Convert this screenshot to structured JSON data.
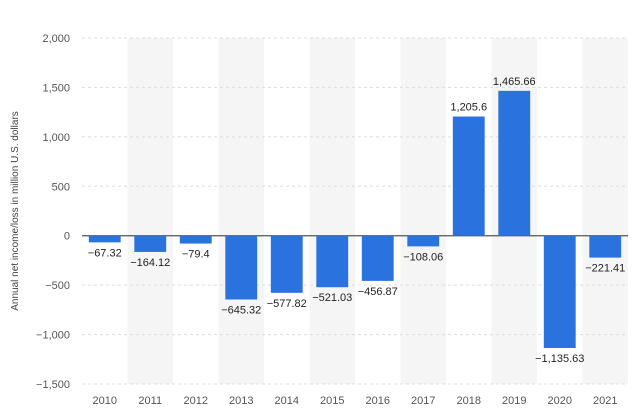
{
  "chart_data": {
    "type": "bar",
    "categories": [
      "2010",
      "2011",
      "2012",
      "2013",
      "2014",
      "2015",
      "2016",
      "2017",
      "2018",
      "2019",
      "2020",
      "2021"
    ],
    "values": [
      -67.32,
      -164.12,
      -79.4,
      -645.32,
      -577.82,
      -521.03,
      -456.87,
      -108.06,
      1205.6,
      1465.66,
      -1135.63,
      -221.41
    ],
    "value_labels": [
      "−67.32",
      "−164.12",
      "−79.4",
      "−645.32",
      "−577.82",
      "−521.03",
      "−456.87",
      "−108.06",
      "1,205.6",
      "1,465.66",
      "−1,135.63",
      "−221.41"
    ],
    "ylabel": "Annual net income/loss in million U.S. dollars",
    "ylim": [
      -1500,
      2000
    ],
    "yticks": [
      2000,
      1500,
      1000,
      500,
      0,
      -500,
      -1000,
      -1500
    ],
    "ytick_labels": [
      "2,000",
      "1,500",
      "1,000",
      "500",
      "0",
      "−500",
      "−1,000",
      "−1,500"
    ],
    "grid": true,
    "bar_color": "#2a72de",
    "band_color": "#f5f5f5"
  }
}
